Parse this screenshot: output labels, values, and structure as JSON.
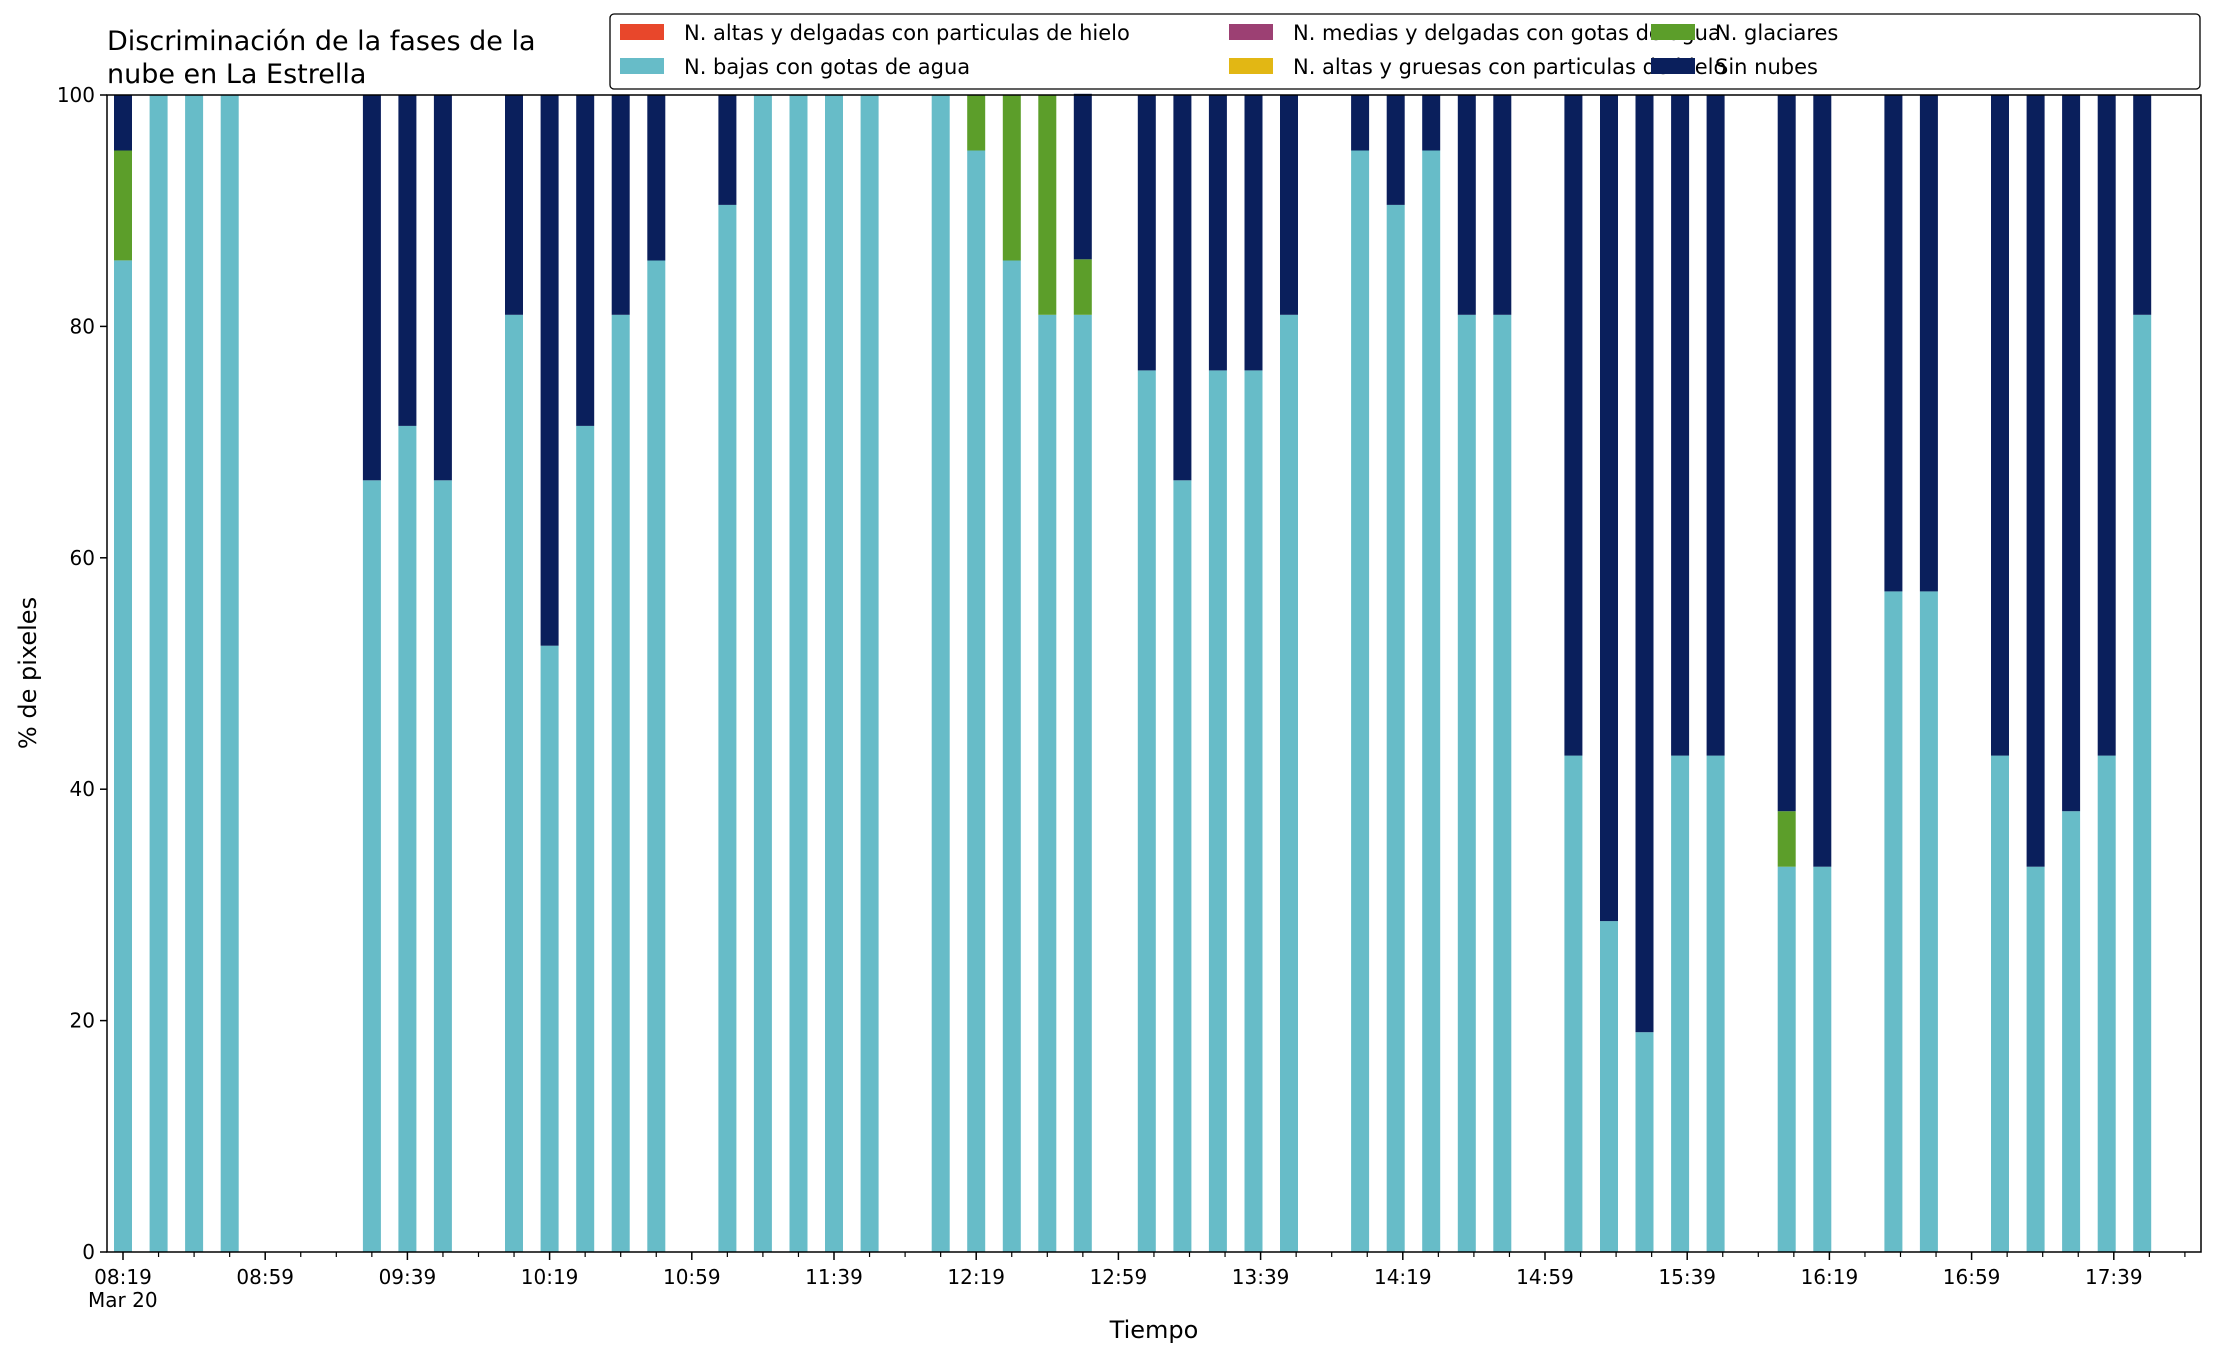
{
  "chart_data": {
    "type": "bar",
    "stacked": true,
    "title_lines": [
      "Discriminación de la fases de la",
      "nube en La Estrella"
    ],
    "xlabel": "Tiempo",
    "ylabel": "% de pixeles",
    "ylim": [
      0,
      100
    ],
    "yticks": [
      "0",
      "20",
      "40",
      "60",
      "80",
      "100"
    ],
    "x_date_label": "Mar 20",
    "x_slot_minutes": 10,
    "x_range_minutes": [
      0,
      590
    ],
    "x_ticks": [
      {
        "minute": 0,
        "label": "08:19"
      },
      {
        "minute": 40,
        "label": "08:59"
      },
      {
        "minute": 80,
        "label": "09:39"
      },
      {
        "minute": 120,
        "label": "10:19"
      },
      {
        "minute": 160,
        "label": "10:59"
      },
      {
        "minute": 200,
        "label": "11:39"
      },
      {
        "minute": 240,
        "label": "12:19"
      },
      {
        "minute": 280,
        "label": "12:59"
      },
      {
        "minute": 320,
        "label": "13:39"
      },
      {
        "minute": 360,
        "label": "14:19"
      },
      {
        "minute": 400,
        "label": "14:59"
      },
      {
        "minute": 440,
        "label": "15:39"
      },
      {
        "minute": 480,
        "label": "16:19"
      },
      {
        "minute": 520,
        "label": "16:59"
      },
      {
        "minute": 560,
        "label": "17:39"
      }
    ],
    "legend_position": "top-right",
    "series": [
      {
        "name": "N. altas y delgadas con particulas de hielo",
        "color": "#e8472b"
      },
      {
        "name": "N. altas y gruesas con particulas de hielo",
        "color": "#e2b714"
      },
      {
        "name": "N. bajas con gotas de agua",
        "color": "#67bcc8"
      },
      {
        "name": "N. glaciares",
        "color": "#5c9e2a"
      },
      {
        "name": "N. medias y delgadas con gotas de agua",
        "color": "#9c4073"
      },
      {
        "name": "Sin nubes",
        "color": "#0a1f5c"
      }
    ],
    "legend_order": [
      0,
      2,
      4,
      1,
      3,
      5
    ],
    "bars": [
      {
        "minute": 0,
        "values": [
          0,
          0,
          85.7,
          9.5,
          0,
          4.8
        ]
      },
      {
        "minute": 10,
        "values": [
          0,
          0,
          100,
          0,
          0,
          0
        ]
      },
      {
        "minute": 20,
        "values": [
          0,
          0,
          100,
          0,
          0,
          0
        ]
      },
      {
        "minute": 30,
        "values": [
          0,
          0,
          100,
          0,
          0,
          0
        ]
      },
      {
        "minute": 70,
        "values": [
          0,
          0,
          66.7,
          0,
          0,
          33.3
        ]
      },
      {
        "minute": 80,
        "values": [
          0,
          0,
          71.4,
          0,
          0,
          28.6
        ]
      },
      {
        "minute": 90,
        "values": [
          0,
          0,
          66.7,
          0,
          0,
          33.3
        ]
      },
      {
        "minute": 110,
        "values": [
          0,
          0,
          81.0,
          0,
          0,
          19.0
        ]
      },
      {
        "minute": 120,
        "values": [
          0,
          0,
          52.4,
          0,
          0,
          47.6
        ]
      },
      {
        "minute": 130,
        "values": [
          0,
          0,
          71.4,
          0,
          0,
          28.6
        ]
      },
      {
        "minute": 140,
        "values": [
          0,
          0,
          81.0,
          0,
          0,
          19.0
        ]
      },
      {
        "minute": 150,
        "values": [
          0,
          0,
          85.7,
          0,
          0,
          14.3
        ]
      },
      {
        "minute": 170,
        "values": [
          0,
          0,
          90.5,
          0,
          0,
          9.5
        ]
      },
      {
        "minute": 180,
        "values": [
          0,
          0,
          100,
          0,
          0,
          0
        ]
      },
      {
        "minute": 190,
        "values": [
          0,
          0,
          100,
          0,
          0,
          0
        ]
      },
      {
        "minute": 200,
        "values": [
          0,
          0,
          100,
          0,
          0,
          0
        ]
      },
      {
        "minute": 210,
        "values": [
          0,
          0,
          100,
          0,
          0,
          0
        ]
      },
      {
        "minute": 230,
        "values": [
          0,
          0,
          100,
          0,
          0,
          0
        ]
      },
      {
        "minute": 240,
        "values": [
          0,
          0,
          95.2,
          4.8,
          0,
          0
        ]
      },
      {
        "minute": 250,
        "values": [
          0,
          0,
          85.7,
          14.3,
          0,
          0
        ]
      },
      {
        "minute": 260,
        "values": [
          0,
          0,
          81.0,
          19.0,
          0,
          0
        ]
      },
      {
        "minute": 270,
        "values": [
          0,
          0,
          81.0,
          4.8,
          0,
          14.3
        ]
      },
      {
        "minute": 288,
        "values": [
          0,
          0,
          76.2,
          0,
          0,
          23.8
        ]
      },
      {
        "minute": 298,
        "values": [
          0,
          0,
          66.7,
          0,
          0,
          33.3
        ]
      },
      {
        "minute": 308,
        "values": [
          0,
          0,
          76.2,
          0,
          0,
          23.8
        ]
      },
      {
        "minute": 318,
        "values": [
          0,
          0,
          76.2,
          0,
          0,
          23.8
        ]
      },
      {
        "minute": 328,
        "values": [
          0,
          0,
          81.0,
          0,
          0,
          19.0
        ]
      },
      {
        "minute": 348,
        "values": [
          0,
          0,
          95.2,
          0,
          0,
          4.8
        ]
      },
      {
        "minute": 358,
        "values": [
          0,
          0,
          90.5,
          0,
          0,
          9.5
        ]
      },
      {
        "minute": 368,
        "values": [
          0,
          0,
          95.2,
          0,
          0,
          4.8
        ]
      },
      {
        "minute": 378,
        "values": [
          0,
          0,
          81.0,
          0,
          0,
          19.0
        ]
      },
      {
        "minute": 388,
        "values": [
          0,
          0,
          81.0,
          0,
          0,
          19.0
        ]
      },
      {
        "minute": 408,
        "values": [
          0,
          0,
          42.9,
          0,
          0,
          57.1
        ]
      },
      {
        "minute": 418,
        "values": [
          0,
          0,
          28.6,
          0,
          0,
          71.4
        ]
      },
      {
        "minute": 428,
        "values": [
          0,
          0,
          19.0,
          0,
          0,
          81.0
        ]
      },
      {
        "minute": 438,
        "values": [
          0,
          0,
          42.9,
          0,
          0,
          57.1
        ]
      },
      {
        "minute": 448,
        "values": [
          0,
          0,
          42.9,
          0,
          0,
          57.1
        ]
      },
      {
        "minute": 468,
        "values": [
          0,
          0,
          33.3,
          4.8,
          0,
          61.9
        ]
      },
      {
        "minute": 478,
        "values": [
          0,
          0,
          33.3,
          0,
          0,
          66.7
        ]
      },
      {
        "minute": 498,
        "values": [
          0,
          0,
          57.1,
          0,
          0,
          42.9
        ]
      },
      {
        "minute": 508,
        "values": [
          0,
          0,
          57.1,
          0,
          0,
          42.9
        ]
      },
      {
        "minute": 528,
        "values": [
          0,
          0,
          42.9,
          0,
          0,
          57.1
        ]
      },
      {
        "minute": 538,
        "values": [
          0,
          0,
          33.3,
          0,
          0,
          66.7
        ]
      },
      {
        "minute": 548,
        "values": [
          0,
          0,
          38.1,
          0,
          0,
          61.9
        ]
      },
      {
        "minute": 558,
        "values": [
          0,
          0,
          42.9,
          0,
          0,
          57.1
        ]
      },
      {
        "minute": 568,
        "values": [
          0,
          0,
          81.0,
          0,
          0,
          19.0
        ]
      }
    ]
  }
}
